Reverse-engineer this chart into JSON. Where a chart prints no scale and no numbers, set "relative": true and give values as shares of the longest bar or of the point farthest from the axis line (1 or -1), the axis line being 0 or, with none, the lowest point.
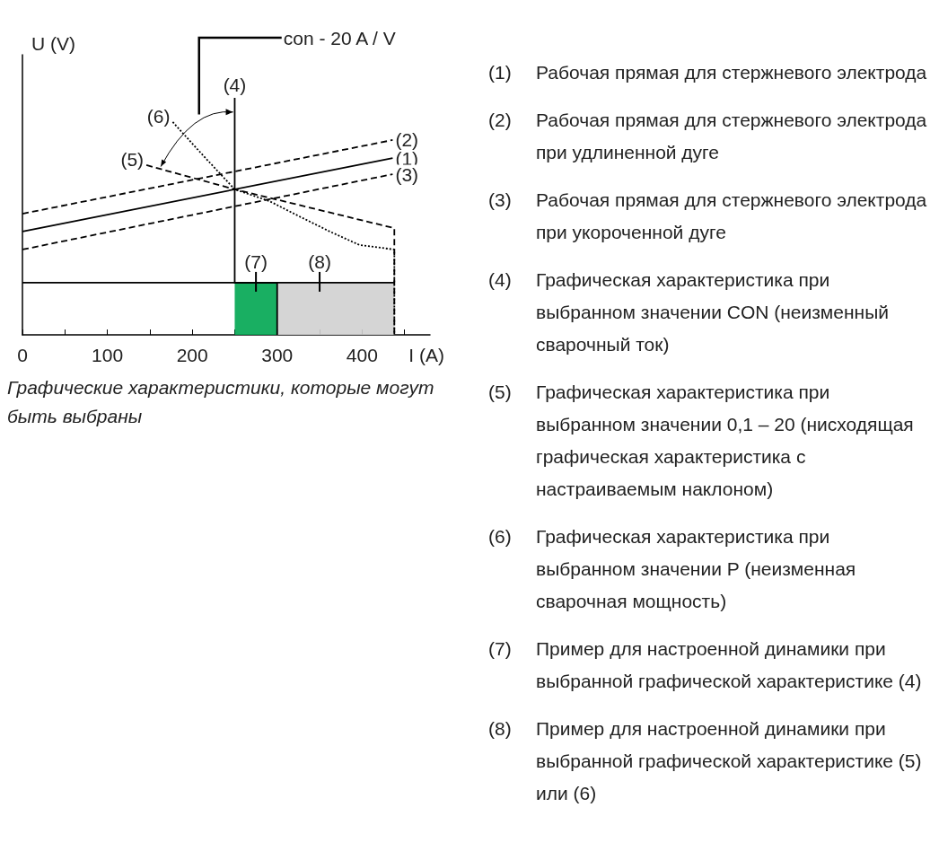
{
  "chart_data": [
    {
      "type": "line",
      "relative": true,
      "ylabel": "U (V)",
      "xlabel": "I (A)",
      "xlim": [
        0,
        480
      ],
      "xticks": [
        0,
        {
          "value": 50,
          "label": null
        },
        100,
        {
          "value": 150,
          "label": null
        },
        200,
        {
          "value": 250,
          "label": null
        },
        300,
        {
          "value": 350,
          "label": null
        },
        400,
        {
          "value": 450,
          "label": null
        }
      ],
      "grid": false,
      "marker": "none",
      "series": [
        {
          "color": "#000000",
          "line_style": "solid",
          "x": [
            0,
            436
          ],
          "values": [
            0.436,
            0.746
          ]
        },
        {
          "color": "#000000",
          "line_style": "dashed",
          "x": [
            0,
            436
          ],
          "values": [
            0.511,
            0.822
          ]
        },
        {
          "color": "#000000",
          "line_style": "dashed",
          "x": [
            0,
            436
          ],
          "values": [
            0.36,
            0.678
          ]
        },
        {
          "color": "#000000",
          "line_style": "solid",
          "x": [
            250,
            250,
            300,
            300
          ],
          "values": [
            1,
            0.22,
            0.22,
            0
          ]
        },
        {
          "color": "#000000",
          "line_style": "dashed",
          "x": [
            146,
            250,
            438,
            438
          ],
          "values": [
            0.716,
            0.614,
            0.45,
            0
          ]
        },
        {
          "color": "#000000",
          "line_style": "dotted",
          "x": [
            177,
            213,
            250,
            291,
            326,
            362,
            397,
            438,
            438
          ],
          "values": [
            0.898,
            0.756,
            0.614,
            0.564,
            0.5,
            0.436,
            0.379,
            0.36,
            0
          ]
        },
        {
          "color": "#000000",
          "line_style": "solid",
          "x": [
            0,
            438
          ],
          "values": [
            0.22,
            0.22
          ]
        },
        {
          "type": "area",
          "color": "#00a651",
          "x": [
            250,
            300
          ],
          "values": [
            0.22,
            0.22
          ]
        },
        {
          "type": "area",
          "color": "#d0d0d0",
          "x": [
            300,
            438
          ],
          "values": [
            0.22,
            0.22
          ]
        }
      ],
      "annotations": [
        "con - 20 A / V",
        "Графические характеристики, которые могут\nбыть выбраны",
        {
          "text": "(1)",
          "x": 436,
          "y": 0.746
        },
        {
          "text": "(2)",
          "x": 436,
          "y": 0.822
        },
        {
          "text": "(3)",
          "x": 436,
          "y": 0.678
        },
        {
          "text": "(4)",
          "x": 250,
          "y": 1
        },
        {
          "text": "(5)",
          "x": 146,
          "y": 0.716
        },
        {
          "text": "(6)",
          "x": 177,
          "y": 0.898
        },
        {
          "text": "(7)",
          "x": 275,
          "y": 0.22
        },
        {
          "text": "(8)",
          "x": 350,
          "y": 0.22
        }
      ]
    },
    {
      "type": "other",
      "annotations": [
        "(1) Рабочая прямая для стержневого электрода",
        "(2) Рабочая прямая для стержневого электрода\nпри удлиненной дуге",
        "(3) Рабочая прямая для стержневого электрода\nпри укороченной дуге",
        "(4) Графическая характеристика при\nвыбранном значении CON (неизменный\nсварочный ток)",
        "(5) Графическая характеристика при\nвыбранном значении 0,1 – 20 (нисходящая\nграфическая характеристика с\nнастраиваемым наклоном)",
        "(6) Графическая характеристика при\nвыбранном значении P (неизменная\nсварочная мощность)",
        "(7) Пример для настроенной динамики при\nвыбранной графической характеристике (4)",
        "(8) Пример для настроенной динамики при\nвыбранной графической характеристике (5)\nили (6)"
      ]
    }
  ]
}
